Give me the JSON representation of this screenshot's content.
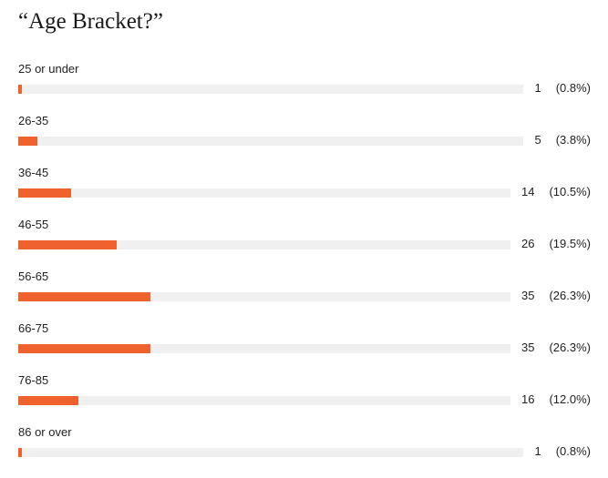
{
  "chart_data": {
    "type": "bar",
    "title": "“Age Bracket?”",
    "categories": [
      "25 or under",
      "26-35",
      "36-45",
      "46-55",
      "56-65",
      "66-75",
      "76-85",
      "86 or over"
    ],
    "values": [
      1,
      5,
      14,
      26,
      35,
      35,
      16,
      1
    ],
    "percent_labels": [
      "(0.8%)",
      "(3.8%)",
      "(10.5%)",
      "(19.5%)",
      "(26.3%)",
      "(26.3%)",
      "(12.0%)",
      "(0.8%)"
    ],
    "percent_values": [
      0.8,
      3.8,
      10.5,
      19.5,
      26.3,
      26.3,
      12.0,
      0.8
    ],
    "xlim": [
      0,
      133
    ],
    "orientation": "horizontal",
    "grid": false,
    "legend": "none",
    "colors": {
      "bar": "#f0622d",
      "track": "#f0f0f0"
    }
  }
}
